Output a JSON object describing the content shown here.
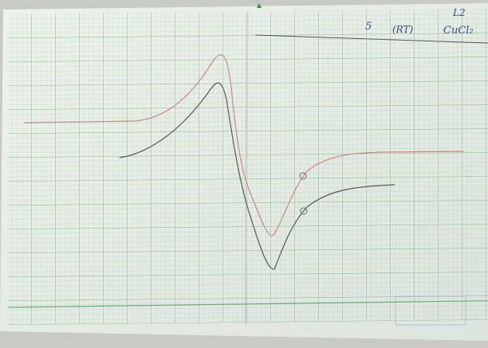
{
  "header": {
    "tag": "L2",
    "sample": "CuCl₂",
    "label": "5",
    "condition": "(RT)"
  }
}
